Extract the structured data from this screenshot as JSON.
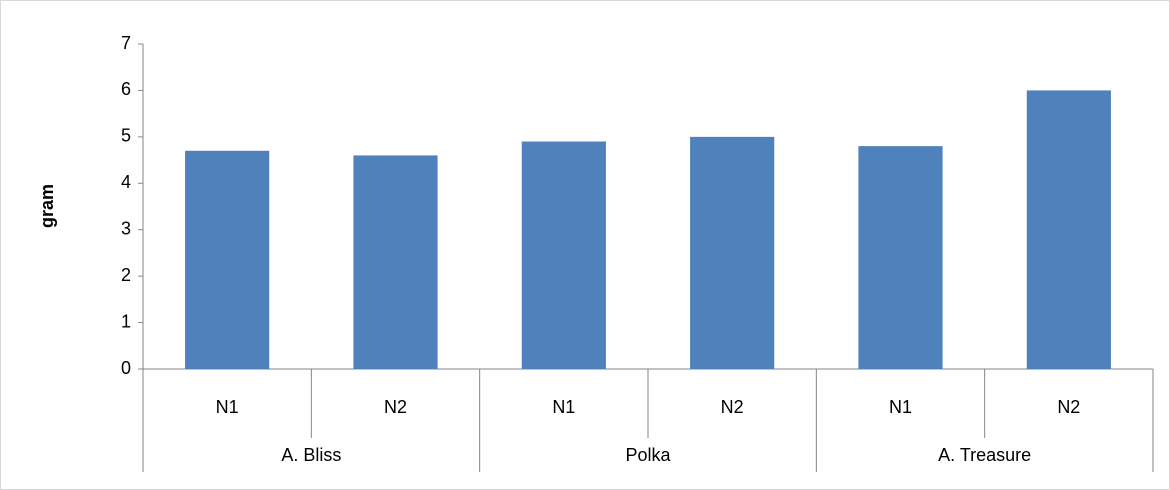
{
  "chart_data": {
    "type": "bar",
    "y_label": "gram",
    "categories": [
      "N1",
      "N2",
      "N1",
      "N2",
      "N1",
      "N2"
    ],
    "groups": [
      "A. Bliss",
      "Polka",
      "A. Treasure"
    ],
    "values": [
      4.7,
      4.6,
      4.9,
      5.0,
      4.8,
      6.0
    ],
    "color": "#4f81bd",
    "ylim": [
      0,
      7
    ],
    "yticks": [
      0,
      1,
      2,
      3,
      4,
      5,
      6,
      7
    ],
    "grid": false
  }
}
